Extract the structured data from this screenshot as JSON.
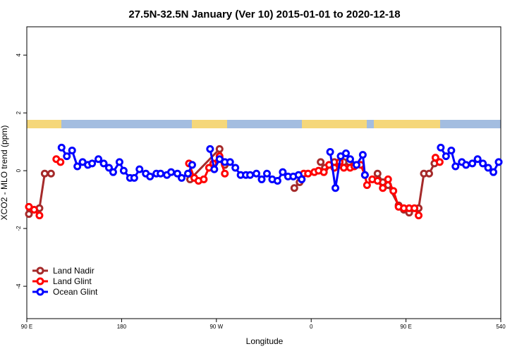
{
  "chart_data": {
    "type": "line",
    "title": "27.5N-32.5N January (Ver 10)   2015-01-01 to 2020-12-18",
    "xlabel": "Longitude",
    "ylabel": "XCO2 - MLO trend (ppm)",
    "xlim": [
      90,
      540
    ],
    "ylim": [
      -5.12,
      4.98
    ],
    "xticks": [
      {
        "value": 90,
        "label": "90 E"
      },
      180,
      {
        "value": 270,
        "label": "90 W"
      },
      {
        "value": 360,
        "label": "0"
      },
      {
        "value": 450,
        "label": "90 E"
      },
      540
    ],
    "yticks": [
      -4,
      -2,
      0,
      2,
      4
    ],
    "legend": "bottom-left",
    "series": [
      {
        "name": "Land Nadir",
        "color": "#a52a2a",
        "x": [
          92,
          102,
          107,
          113,
          null,
          245,
          273,
          278,
          null,
          344,
          349,
          null,
          369,
          373,
          382,
          387,
          391,
          396,
          null,
          423,
          428,
          433,
          443,
          448,
          453,
          462,
          467,
          472,
          477
        ],
        "values": [
          -1.5,
          -1.3,
          -0.1,
          -0.1,
          null,
          -0.3,
          0.75,
          0.2,
          null,
          -0.6,
          -0.4,
          null,
          0.3,
          0.1,
          0.3,
          0.2,
          0.3,
          0.3,
          null,
          -0.1,
          -0.4,
          -0.5,
          -1.2,
          -1.35,
          -1.45,
          -1.3,
          -0.1,
          -0.1,
          0.25
        ]
      },
      {
        "name": "Land Glint",
        "color": "#ff0000",
        "x": [
          92,
          97,
          102,
          null,
          118,
          122,
          null,
          244,
          249,
          253,
          258,
          263,
          267,
          273,
          278,
          null,
          353,
          357,
          363,
          367,
          372,
          377,
          382,
          387,
          391,
          397,
          401,
          407,
          411,
          413,
          418,
          423,
          428,
          433,
          438,
          443,
          448,
          453,
          458,
          462,
          null,
          478,
          482
        ],
        "values": [
          -1.25,
          -1.35,
          -1.55,
          null,
          0.4,
          0.3,
          null,
          0.25,
          -0.25,
          -0.35,
          -0.3,
          0.1,
          0.25,
          0.5,
          -0.1,
          null,
          -0.1,
          -0.1,
          -0.05,
          0,
          -0.05,
          0.2,
          0.1,
          0.3,
          0.1,
          0.1,
          0.15,
          0.2,
          -0.15,
          -0.5,
          -0.3,
          -0.35,
          -0.6,
          -0.3,
          -0.7,
          -1.25,
          -1.3,
          -1.3,
          -1.3,
          -1.55,
          null,
          0.45,
          0.3
        ]
      },
      {
        "name": "Ocean Glint",
        "color": "#0000ff",
        "x": [
          123,
          128,
          133,
          138,
          143,
          148,
          152,
          158,
          163,
          168,
          172,
          178,
          182,
          188,
          192,
          197,
          203,
          207,
          213,
          217,
          223,
          227,
          233,
          237,
          243,
          247,
          null,
          264,
          268,
          273,
          278,
          283,
          288,
          293,
          298,
          302,
          308,
          313,
          318,
          323,
          328,
          333,
          338,
          343,
          348,
          351,
          null,
          378,
          383,
          388,
          393,
          397,
          403,
          409,
          411,
          null,
          483,
          488,
          493,
          497,
          503,
          507,
          513,
          518,
          523,
          528,
          533,
          538
        ],
        "values": [
          0.8,
          0.5,
          0.7,
          0.15,
          0.3,
          0.2,
          0.25,
          0.4,
          0.25,
          0.1,
          -0.05,
          0.3,
          0,
          -0.25,
          -0.25,
          0.05,
          -0.1,
          -0.2,
          -0.1,
          -0.1,
          -0.15,
          -0.05,
          -0.1,
          -0.25,
          -0.1,
          0.2,
          null,
          0.75,
          0.05,
          0.4,
          0.3,
          0.3,
          0.1,
          -0.15,
          -0.15,
          -0.15,
          -0.1,
          -0.3,
          -0.1,
          -0.3,
          -0.35,
          -0.05,
          -0.2,
          -0.2,
          -0.15,
          -0.3,
          null,
          0.65,
          -0.6,
          0.5,
          0.6,
          0.4,
          0.2,
          0.55,
          -0.15,
          null,
          0.8,
          0.5,
          0.7,
          0.15,
          0.3,
          0.2,
          0.25,
          0.4,
          0.25,
          0.1,
          -0.05,
          0.3
        ]
      }
    ]
  }
}
